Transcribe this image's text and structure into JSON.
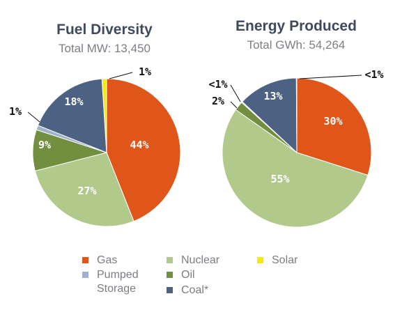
{
  "chart_data": [
    {
      "type": "pie",
      "title": "Fuel Diversity",
      "subtitle": "Total MW: 13,450",
      "slices": [
        {
          "name": "Gas",
          "value": 44,
          "label": "44%",
          "color": "#e0561a"
        },
        {
          "name": "Nuclear",
          "value": 27,
          "label": "27%",
          "color": "#b2c98c"
        },
        {
          "name": "Oil",
          "value": 9,
          "label": "9%",
          "color": "#718f3e"
        },
        {
          "name": "Pumped Storage",
          "value": 1,
          "label": "1%",
          "color": "#9fb1cc"
        },
        {
          "name": "Coal*",
          "value": 18,
          "label": "18%",
          "color": "#4d6283"
        },
        {
          "name": "Solar",
          "value": 1,
          "label": "1%",
          "color": "#f2ec0e"
        }
      ]
    },
    {
      "type": "pie",
      "title": "Energy Produced",
      "subtitle": "Total GWh: 54,264",
      "slices": [
        {
          "name": "Gas",
          "value": 30,
          "label": "30%",
          "color": "#e0561a"
        },
        {
          "name": "Nuclear",
          "value": 55,
          "label": "55%",
          "color": "#b2c98c"
        },
        {
          "name": "Oil",
          "value": 2,
          "label": "2%",
          "color": "#718f3e"
        },
        {
          "name": "Pumped Storage",
          "value": 0.2,
          "label": "<1%",
          "color": "#9fb1cc"
        },
        {
          "name": "Coal*",
          "value": 13,
          "label": "13%",
          "color": "#4d6283"
        },
        {
          "name": "Solar",
          "value": 0.1,
          "label": "<1%",
          "color": "#f2ec0e"
        }
      ]
    }
  ],
  "legend": [
    {
      "label": "Gas",
      "color": "#e0561a"
    },
    {
      "label": "Nuclear",
      "color": "#b2c98c"
    },
    {
      "label": "Solar",
      "color": "#f2ec0e"
    },
    {
      "label": "Pumped Storage",
      "color": "#9fb1cc"
    },
    {
      "label": "Oil",
      "color": "#718f3e"
    },
    {
      "label": "Coal*",
      "color": "#4d6283"
    }
  ]
}
